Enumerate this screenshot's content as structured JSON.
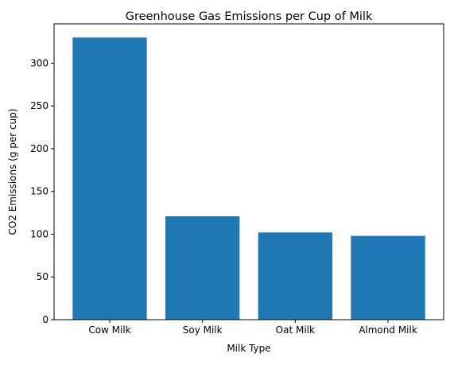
{
  "chart_data": {
    "type": "bar",
    "title": "Greenhouse Gas Emissions per Cup of Milk",
    "xlabel": "Milk Type",
    "ylabel": "CO2 Emissions (g per cup)",
    "categories": [
      "Cow Milk",
      "Soy Milk",
      "Oat Milk",
      "Almond Milk"
    ],
    "values": [
      330,
      121,
      102,
      98
    ],
    "ylim": [
      0,
      346
    ],
    "yticks": [
      0,
      50,
      100,
      150,
      200,
      250,
      300
    ],
    "bar_color": "#1f77b4",
    "grid": false,
    "legend": "none"
  }
}
